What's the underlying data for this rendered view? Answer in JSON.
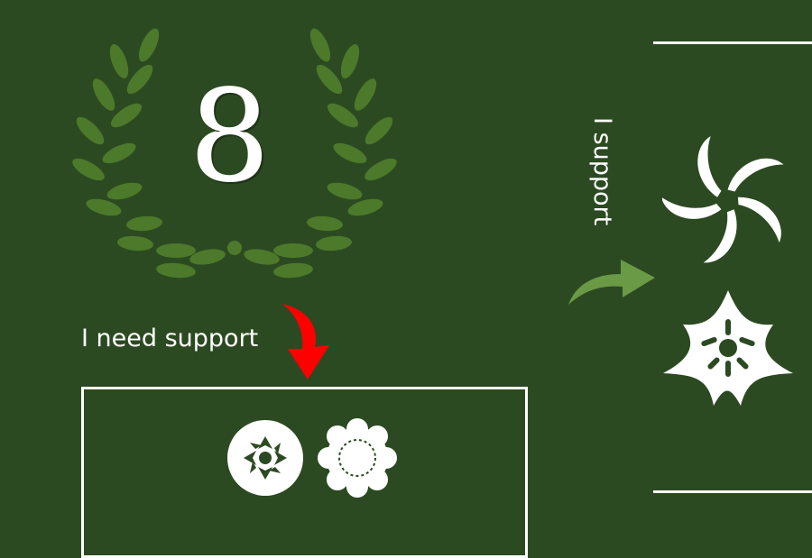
{
  "badge": {
    "number": "8"
  },
  "labels": {
    "need_support": "I need support",
    "support": "I support"
  },
  "colors": {
    "background": "#2c4a22",
    "laurel": "#4f7c2c",
    "red_arrow": "#ff0000",
    "green_arrow": "#6a9a45",
    "white": "#ffffff"
  },
  "icons": {
    "wreath": "laurel-wreath-icon",
    "arrow_down": "red-curved-arrow-icon",
    "arrow_right": "green-curved-arrow-icon",
    "flower_a": "swirl-flower-icon",
    "flower_b": "star-flower-icon",
    "ornament_a": "rosette-ornament-icon",
    "ornament_b": "scalloped-ornament-icon"
  }
}
